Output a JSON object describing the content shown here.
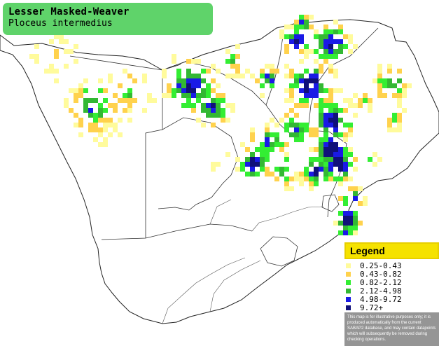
{
  "title": {
    "common_name": "Lesser Masked-Weaver",
    "scientific_name": "Ploceus intermedius"
  },
  "legend": {
    "title": "Legend",
    "items": [
      {
        "range": "0.25-0.43",
        "color": "#fffb9c"
      },
      {
        "range": "0.43-0.82",
        "color": "#ffd24d"
      },
      {
        "range": "0.82-2.12",
        "color": "#33ee33"
      },
      {
        "range": "2.12-4.98",
        "color": "#33b833"
      },
      {
        "range": "4.98-9.72",
        "color": "#1a1ae6"
      },
      {
        "range": "9.72+",
        "color": "#10107a"
      }
    ],
    "disclaimer": "This map is for illustrative purposes only; it is produced automatically from the current SABAP2 database, and may contain datapoints which will subsequently be removed during checking operations."
  },
  "colors": {
    "land": "#ffffff",
    "border": "#222222",
    "title_bg": "#5fd36a",
    "legend_header": "#f5e200",
    "note_bg": "#959595"
  }
}
